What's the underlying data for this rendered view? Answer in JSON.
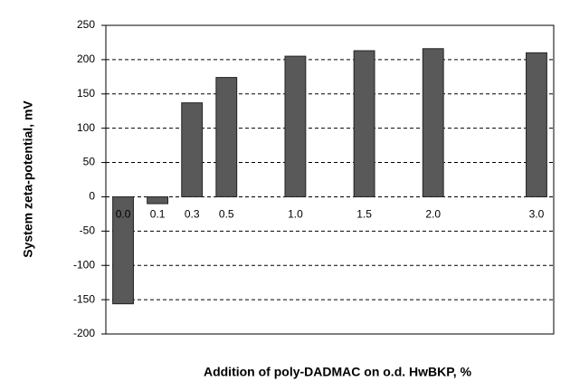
{
  "chart_data": {
    "type": "bar",
    "x_label": "Addition of poly-DADMAC on o.d. HwBKP, %",
    "y_label": "System zeta-potential, mV",
    "categories": [
      "0.0",
      "0.1",
      "0.3",
      "0.5",
      null,
      "1.0",
      null,
      "1.5",
      null,
      "2.0",
      null,
      null,
      "3.0"
    ],
    "values": [
      -156,
      -10,
      137,
      174,
      null,
      205,
      null,
      213,
      null,
      216,
      null,
      null,
      210
    ],
    "color": "#595959",
    "ylim": [
      -200,
      250
    ],
    "yticks": [
      -200,
      -150,
      -100,
      -50,
      0,
      50,
      100,
      150,
      200,
      250
    ],
    "grid": true
  }
}
